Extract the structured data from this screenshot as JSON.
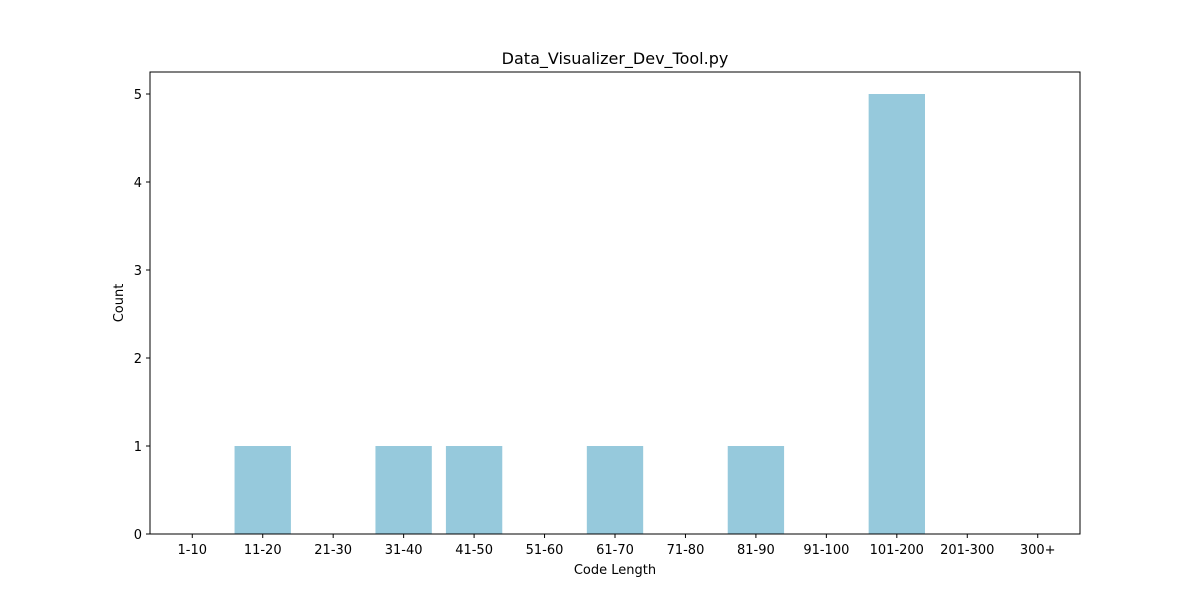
{
  "chart_data": {
    "type": "bar",
    "title": "Data_Visualizer_Dev_Tool.py",
    "xlabel": "Code Length",
    "ylabel": "Count",
    "categories": [
      "1-10",
      "11-20",
      "21-30",
      "31-40",
      "41-50",
      "51-60",
      "61-70",
      "71-80",
      "81-90",
      "91-100",
      "101-200",
      "201-300",
      "300+"
    ],
    "values": [
      0,
      1,
      0,
      1,
      1,
      0,
      1,
      0,
      1,
      0,
      5,
      0,
      0
    ],
    "ylim": [
      0,
      5.25
    ],
    "yticks": [
      0,
      1,
      2,
      3,
      4,
      5
    ],
    "bar_color": "#96c9dc",
    "grid": false,
    "legend": "none"
  }
}
